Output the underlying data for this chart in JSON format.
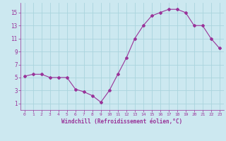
{
  "x": [
    0,
    1,
    2,
    3,
    4,
    5,
    6,
    7,
    8,
    9,
    10,
    11,
    12,
    13,
    14,
    15,
    16,
    17,
    18,
    19,
    20,
    21,
    22,
    23
  ],
  "y": [
    5.2,
    5.5,
    5.5,
    5.0,
    5.0,
    5.0,
    3.2,
    2.8,
    2.2,
    1.2,
    3.0,
    5.5,
    8.0,
    11.0,
    13.0,
    14.5,
    15.0,
    15.5,
    15.5,
    15.0,
    13.0,
    13.0,
    11.0,
    9.5
  ],
  "line_color": "#993399",
  "marker": "D",
  "marker_size": 2,
  "bg_color": "#cce8f0",
  "grid_color": "#aad4dd",
  "xlabel": "Windchill (Refroidissement éolien,°C)",
  "xlabel_color": "#993399",
  "tick_color": "#993399",
  "yticks": [
    1,
    3,
    5,
    7,
    9,
    11,
    13,
    15
  ],
  "xticks": [
    0,
    1,
    2,
    3,
    4,
    5,
    6,
    7,
    8,
    9,
    10,
    11,
    12,
    13,
    14,
    15,
    16,
    17,
    18,
    19,
    20,
    21,
    22,
    23
  ],
  "ylim": [
    0.0,
    16.5
  ],
  "xlim": [
    -0.5,
    23.5
  ]
}
